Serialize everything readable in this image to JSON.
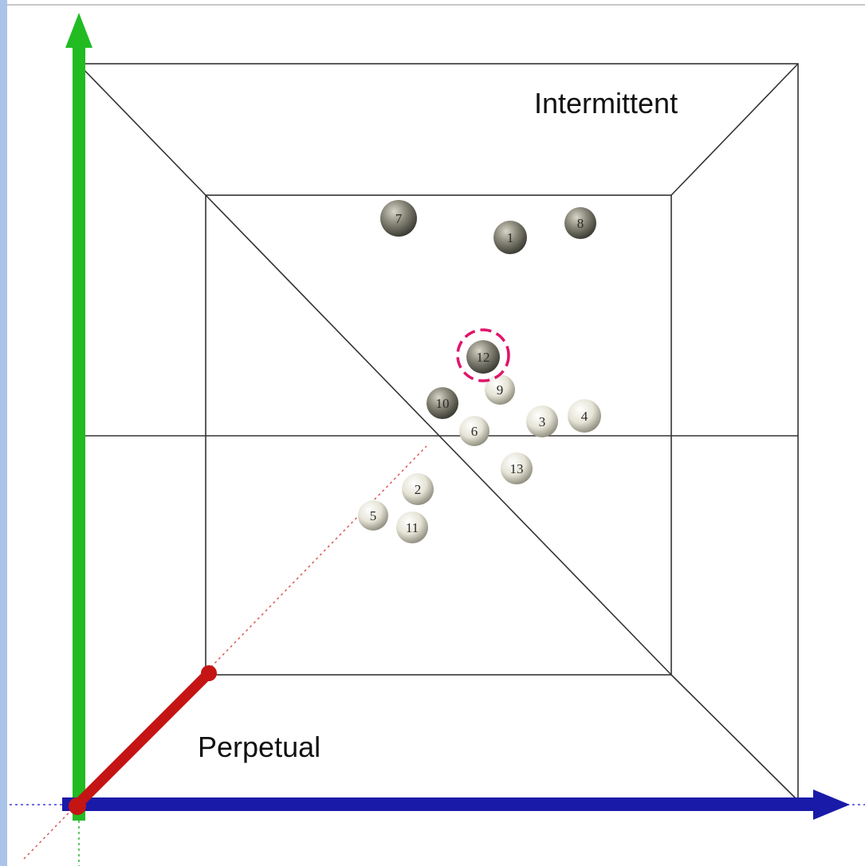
{
  "labels": {
    "top_right": "Intermittent",
    "bottom_left": "Perpetual"
  },
  "points": [
    {
      "id": "1",
      "shade": "dark"
    },
    {
      "id": "2",
      "shade": "light"
    },
    {
      "id": "3",
      "shade": "light"
    },
    {
      "id": "4",
      "shade": "light"
    },
    {
      "id": "5",
      "shade": "light"
    },
    {
      "id": "6",
      "shade": "light"
    },
    {
      "id": "7",
      "shade": "dark"
    },
    {
      "id": "8",
      "shade": "dark"
    },
    {
      "id": "9",
      "shade": "light"
    },
    {
      "id": "10",
      "shade": "dark"
    },
    {
      "id": "11",
      "shade": "light"
    },
    {
      "id": "12",
      "shade": "dark",
      "highlighted": true
    },
    {
      "id": "13",
      "shade": "light"
    }
  ],
  "colors": {
    "y_axis": "#22bb22",
    "x_axis": "#1a1aa8",
    "z_axis": "#c41414",
    "highlight": "#e0146a",
    "frame": "#333333",
    "left_border": "#a9c4e8"
  }
}
